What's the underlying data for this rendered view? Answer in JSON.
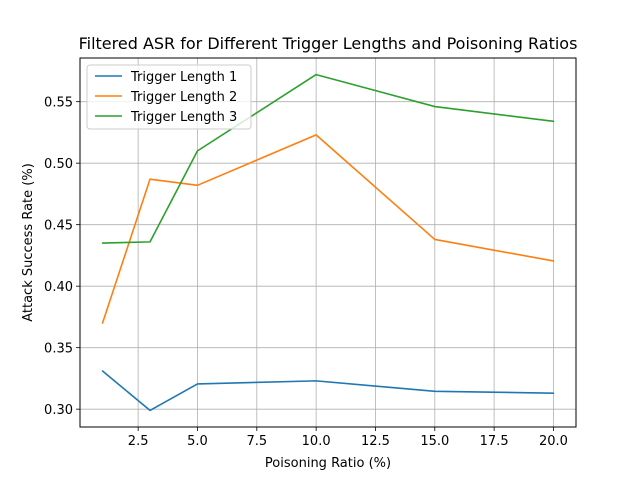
{
  "chart_data": {
    "type": "line",
    "title": "Filtered ASR for Different Trigger Lengths and Poisoning Ratios",
    "xlabel": "Poisoning Ratio (%)",
    "ylabel": "Attack Success Rate (%)",
    "xlim": [
      0.05,
      20.95
    ],
    "ylim": [
      0.2855,
      0.5855
    ],
    "xticks": [
      "2.5",
      "5.0",
      "7.5",
      "10.0",
      "12.5",
      "15.0",
      "17.5",
      "20.0"
    ],
    "yticks": [
      "0.30",
      "0.35",
      "0.40",
      "0.45",
      "0.50",
      "0.55"
    ],
    "grid": true,
    "legend_position": "top-left",
    "x": [
      1,
      3,
      5,
      10,
      15,
      20
    ],
    "series": [
      {
        "name": "Trigger Length 1",
        "color": "#1f77b4",
        "values": [
          0.331,
          0.299,
          0.3205,
          0.323,
          0.3145,
          0.313
        ]
      },
      {
        "name": "Trigger Length 2",
        "color": "#ff7f0e",
        "values": [
          0.37,
          0.487,
          0.482,
          0.523,
          0.438,
          0.4205
        ]
      },
      {
        "name": "Trigger Length 3",
        "color": "#2ca02c",
        "values": [
          0.435,
          0.436,
          0.51,
          0.572,
          0.546,
          0.534
        ]
      }
    ]
  }
}
